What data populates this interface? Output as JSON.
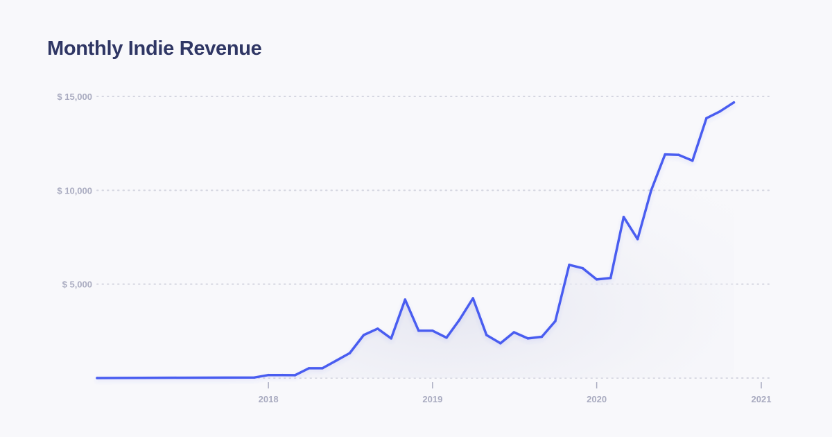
{
  "chart_data": {
    "type": "line",
    "title": "Monthly Indie Revenue",
    "xlabel": "",
    "ylabel": "",
    "ylim": [
      0,
      15000
    ],
    "xlim": [
      "2016-12-16",
      "2021-01-01"
    ],
    "grid": "horizontal dotted",
    "y_ticks": [
      {
        "value": 5000,
        "label": "$ 5,000"
      },
      {
        "value": 10000,
        "label": "$ 10,000"
      },
      {
        "value": 15000,
        "label": "$ 15,000"
      }
    ],
    "x_ticks": [
      {
        "value": "2018-01-01",
        "label": "2018"
      },
      {
        "value": "2019-01-01",
        "label": "2019"
      },
      {
        "value": "2020-01-01",
        "label": "2020"
      },
      {
        "value": "2021-01-01",
        "label": "2021"
      }
    ],
    "colors": {
      "line": "#4a5df0",
      "title": "#2f3664",
      "ticks": "#a9abc0",
      "grid": "#d4d5e0"
    },
    "series": [
      {
        "x": [
          "2016-12-16",
          "2017-12-01",
          "2018-01-01",
          "2018-02-01",
          "2018-03-01",
          "2018-04-01",
          "2018-05-01",
          "2018-06-01",
          "2018-07-01",
          "2018-08-01",
          "2018-09-01",
          "2018-10-01",
          "2018-11-01",
          "2018-12-01",
          "2019-01-01",
          "2019-02-01",
          "2019-03-01",
          "2019-04-01",
          "2019-05-01",
          "2019-06-01",
          "2019-07-01",
          "2019-08-01",
          "2019-09-01",
          "2019-10-01",
          "2019-11-01",
          "2019-12-01",
          "2020-01-01",
          "2020-02-01",
          "2020-03-01",
          "2020-04-01",
          "2020-05-01",
          "2020-06-01",
          "2020-07-01",
          "2020-08-01",
          "2020-09-01",
          "2020-10-01",
          "2020-11-01"
        ],
        "values": [
          0,
          30,
          160,
          160,
          150,
          520,
          520,
          930,
          1330,
          2290,
          2630,
          2110,
          4180,
          2520,
          2520,
          2150,
          3070,
          4250,
          2290,
          1850,
          2440,
          2110,
          2200,
          3030,
          6030,
          5850,
          5250,
          5330,
          8580,
          7400,
          9990,
          11910,
          11890,
          11580,
          13840,
          14200,
          14680
        ]
      }
    ]
  }
}
